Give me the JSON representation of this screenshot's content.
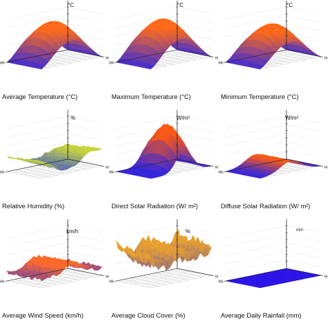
{
  "chart_data": [
    {
      "type": "surface3d",
      "title": "Average Temperature (°C)",
      "unit": "°C",
      "axis_x": "Hr",
      "axis_y": "Wk",
      "shape": "hump",
      "height": 0.62,
      "colors": [
        "#3a2bd6",
        "#ff6a1a"
      ]
    },
    {
      "type": "surface3d",
      "title": "Maximum Temperature (°C)",
      "unit": "°C",
      "axis_x": "Hr",
      "axis_y": "Wk",
      "shape": "hump",
      "height": 0.66,
      "colors": [
        "#3a2bd6",
        "#ff6a1a"
      ]
    },
    {
      "type": "surface3d",
      "title": "Minimum Temperature (°C)",
      "unit": "°C",
      "axis_x": "Hr",
      "axis_y": "Wk",
      "shape": "hump",
      "height": 0.58,
      "colors": [
        "#3a2bd6",
        "#ff6a1a"
      ]
    },
    {
      "type": "surface3d",
      "title": "Relative Humidity (%)",
      "unit": "%",
      "axis_x": "Hr",
      "axis_y": "Wk",
      "shape": "wave",
      "height": 0.32,
      "colors": [
        "#2c48e0",
        "#c9d43a"
      ]
    },
    {
      "type": "surface3d",
      "title": "Direct Solar Radiation (W/ m²)",
      "unit": "W/m²",
      "axis_x": "Hr",
      "axis_y": "Wk",
      "shape": "ridge",
      "height": 0.7,
      "colors": [
        "#2020f0",
        "#ff5a10"
      ]
    },
    {
      "type": "surface3d",
      "title": "Diffuse Solar Radiation (W/ m²)",
      "unit": "W/m²",
      "axis_x": "Hr",
      "axis_y": "Wk",
      "shape": "band",
      "height": 0.22,
      "colors": [
        "#2020f0",
        "#ff5a10"
      ]
    },
    {
      "type": "surface3d",
      "title": "Average Wind Speed (km/h)",
      "unit": "km/h",
      "axis_x": "Hr",
      "axis_y": "Wk",
      "shape": "noisy-ridge",
      "height": 0.3,
      "colors": [
        "#3030e0",
        "#ff6a2a"
      ]
    },
    {
      "type": "surface3d",
      "title": "Average Cloud Cover (%)",
      "unit": "%",
      "axis_x": "Hr",
      "axis_y": "Wk",
      "shape": "valley",
      "height": 0.6,
      "colors": [
        "#3030e0",
        "#e8a030"
      ]
    },
    {
      "type": "surface3d",
      "title": "Average Daily Rainfall (mm)",
      "unit": "mm",
      "axis_x": "Hr",
      "axis_y": "Wk",
      "shape": "flat",
      "height": 0.02,
      "colors": [
        "#1010ff",
        "#ff3030"
      ]
    }
  ]
}
